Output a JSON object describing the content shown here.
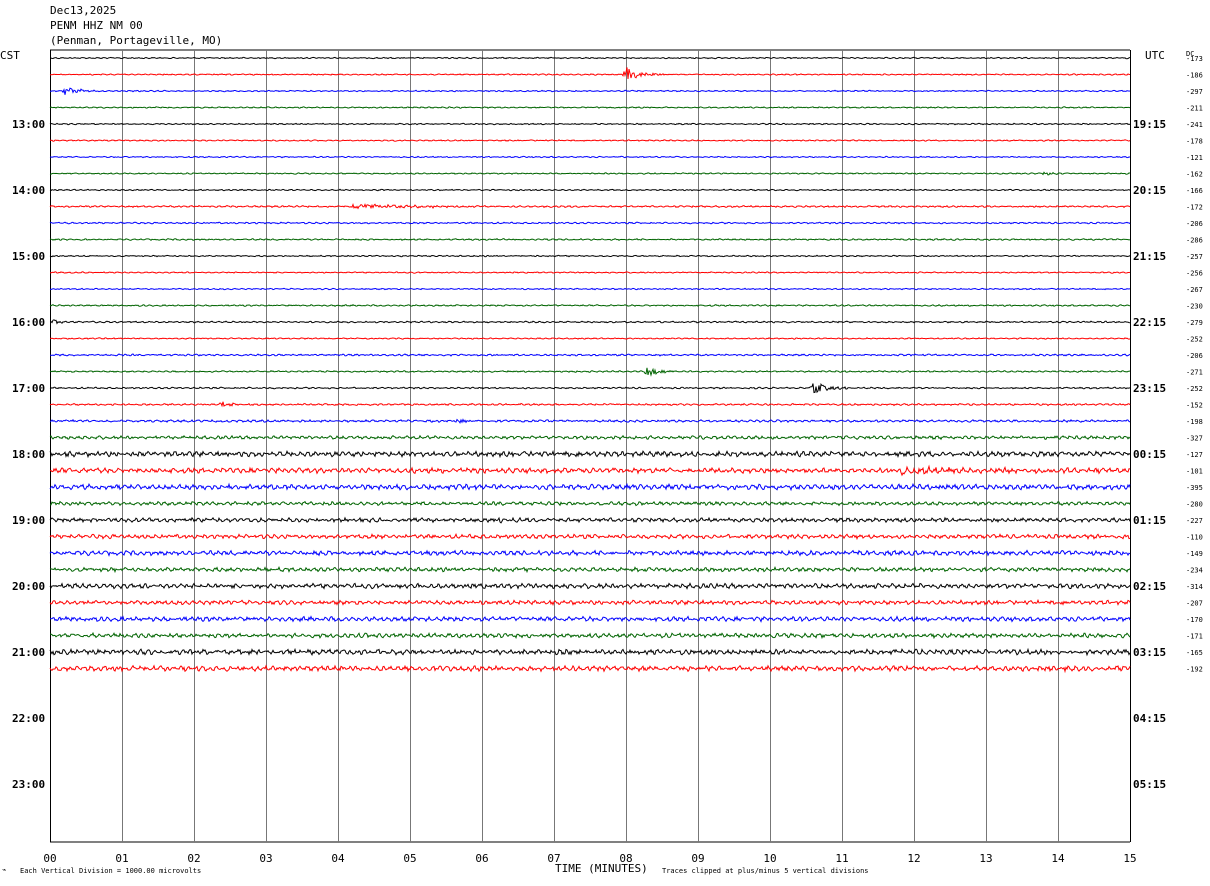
{
  "header": {
    "date": "Dec13,2025",
    "station": "PENM HHZ NM 00",
    "location": "(Penman, Portageville, MO)"
  },
  "left_tz_label": "CST",
  "right_tz_label": "UTC",
  "dc_label": "DC",
  "footer": {
    "scale_note": "Each Vertical Division = 1000.00 microvolts",
    "clip_note": "Traces clipped at plus/minus 5 vertical divisions"
  },
  "chart_data": {
    "type": "line",
    "xlabel": "TIME (MINUTES)",
    "xlim": [
      0,
      15
    ],
    "x_ticks": [
      "00",
      "01",
      "02",
      "03",
      "04",
      "05",
      "06",
      "07",
      "08",
      "09",
      "10",
      "11",
      "12",
      "13",
      "14",
      "15"
    ],
    "line_minutes": 15,
    "row_count": 48,
    "left_hour_labels": [
      {
        "row": 4,
        "text": "13:00"
      },
      {
        "row": 8,
        "text": "14:00"
      },
      {
        "row": 12,
        "text": "15:00"
      },
      {
        "row": 16,
        "text": "16:00"
      },
      {
        "row": 20,
        "text": "17:00"
      },
      {
        "row": 24,
        "text": "18:00"
      },
      {
        "row": 28,
        "text": "19:00"
      },
      {
        "row": 32,
        "text": "20:00"
      },
      {
        "row": 36,
        "text": "21:00"
      },
      {
        "row": 40,
        "text": "22:00"
      },
      {
        "row": 44,
        "text": "23:00"
      }
    ],
    "right_hour_labels": [
      {
        "row": 4,
        "text": "19:15"
      },
      {
        "row": 8,
        "text": "20:15"
      },
      {
        "row": 12,
        "text": "21:15"
      },
      {
        "row": 16,
        "text": "22:15"
      },
      {
        "row": 20,
        "text": "23:15"
      },
      {
        "row": 24,
        "text": "00:15"
      },
      {
        "row": 28,
        "text": "01:15"
      },
      {
        "row": 32,
        "text": "02:15"
      },
      {
        "row": 36,
        "text": "03:15"
      },
      {
        "row": 40,
        "text": "04:15"
      },
      {
        "row": 44,
        "text": "05:15"
      }
    ],
    "trace_colors": [
      "#000000",
      "#ff0000",
      "#0000ff",
      "#006400"
    ],
    "traces": [
      {
        "row": 0,
        "dc": "-173",
        "noise": 0.5,
        "events": []
      },
      {
        "row": 1,
        "dc": "-186",
        "noise": 0.5,
        "events": [
          {
            "minute": 8.0,
            "amp": 7,
            "dur": 0.6
          }
        ]
      },
      {
        "row": 2,
        "dc": "-297",
        "noise": 0.5,
        "events": [
          {
            "minute": 0.2,
            "amp": 5,
            "dur": 0.5
          }
        ]
      },
      {
        "row": 3,
        "dc": "-211",
        "noise": 0.5,
        "events": []
      },
      {
        "row": 4,
        "dc": "-241",
        "noise": 0.5,
        "events": []
      },
      {
        "row": 5,
        "dc": "-178",
        "noise": 0.5,
        "events": []
      },
      {
        "row": 6,
        "dc": "-121",
        "noise": 0.5,
        "events": []
      },
      {
        "row": 7,
        "dc": "-162",
        "noise": 0.5,
        "events": [
          {
            "minute": 13.8,
            "amp": 2.5,
            "dur": 0.4
          }
        ]
      },
      {
        "row": 8,
        "dc": "-166",
        "noise": 0.5,
        "events": []
      },
      {
        "row": 9,
        "dc": "-172",
        "noise": 0.7,
        "events": [
          {
            "minute": 4.2,
            "amp": 2.5,
            "dur": 2.5
          }
        ]
      },
      {
        "row": 10,
        "dc": "-206",
        "noise": 0.6,
        "events": []
      },
      {
        "row": 11,
        "dc": "-286",
        "noise": 0.6,
        "events": []
      },
      {
        "row": 12,
        "dc": "-257",
        "noise": 0.5,
        "events": []
      },
      {
        "row": 13,
        "dc": "-256",
        "noise": 0.5,
        "events": []
      },
      {
        "row": 14,
        "dc": "-267",
        "noise": 0.5,
        "events": []
      },
      {
        "row": 15,
        "dc": "-230",
        "noise": 0.6,
        "events": []
      },
      {
        "row": 16,
        "dc": "-279",
        "noise": 0.6,
        "events": [
          {
            "minute": 0.05,
            "amp": 2.5,
            "dur": 0.3
          }
        ]
      },
      {
        "row": 17,
        "dc": "-252",
        "noise": 0.5,
        "events": []
      },
      {
        "row": 18,
        "dc": "-206",
        "noise": 0.7,
        "events": []
      },
      {
        "row": 19,
        "dc": "-271",
        "noise": 0.6,
        "events": [
          {
            "minute": 8.3,
            "amp": 5,
            "dur": 0.6
          }
        ]
      },
      {
        "row": 20,
        "dc": "-252",
        "noise": 0.6,
        "events": [
          {
            "minute": 10.6,
            "amp": 5.5,
            "dur": 0.7
          }
        ]
      },
      {
        "row": 21,
        "dc": "-152",
        "noise": 0.7,
        "events": [
          {
            "minute": 2.4,
            "amp": 3.5,
            "dur": 0.3
          }
        ]
      },
      {
        "row": 22,
        "dc": "-198",
        "noise": 0.9,
        "events": [
          {
            "minute": 5.6,
            "amp": 3,
            "dur": 0.4
          }
        ]
      },
      {
        "row": 23,
        "dc": "-327",
        "noise": 1.3,
        "events": []
      },
      {
        "row": 24,
        "dc": "-127",
        "noise": 2.0,
        "events": []
      },
      {
        "row": 25,
        "dc": "-101",
        "noise": 2.0,
        "events": [
          {
            "minute": 11.8,
            "amp": 3,
            "dur": 3.0
          }
        ]
      },
      {
        "row": 26,
        "dc": "-395",
        "noise": 2.0,
        "events": []
      },
      {
        "row": 27,
        "dc": "-280",
        "noise": 1.4,
        "events": []
      },
      {
        "row": 28,
        "dc": "-227",
        "noise": 1.6,
        "events": [
          {
            "minute": 6.2,
            "amp": 3.5,
            "dur": 0.4
          }
        ]
      },
      {
        "row": 29,
        "dc": "-110",
        "noise": 1.6,
        "events": []
      },
      {
        "row": 30,
        "dc": "-149",
        "noise": 1.8,
        "events": []
      },
      {
        "row": 31,
        "dc": "-234",
        "noise": 1.6,
        "events": []
      },
      {
        "row": 32,
        "dc": "-314",
        "noise": 1.9,
        "events": []
      },
      {
        "row": 33,
        "dc": "-207",
        "noise": 1.6,
        "events": []
      },
      {
        "row": 34,
        "dc": "-170",
        "noise": 1.8,
        "events": []
      },
      {
        "row": 35,
        "dc": "-171",
        "noise": 1.7,
        "events": []
      },
      {
        "row": 36,
        "dc": "-165",
        "noise": 2.0,
        "events": []
      },
      {
        "row": 37,
        "dc": "-192",
        "noise": 2.0,
        "events": []
      }
    ]
  }
}
